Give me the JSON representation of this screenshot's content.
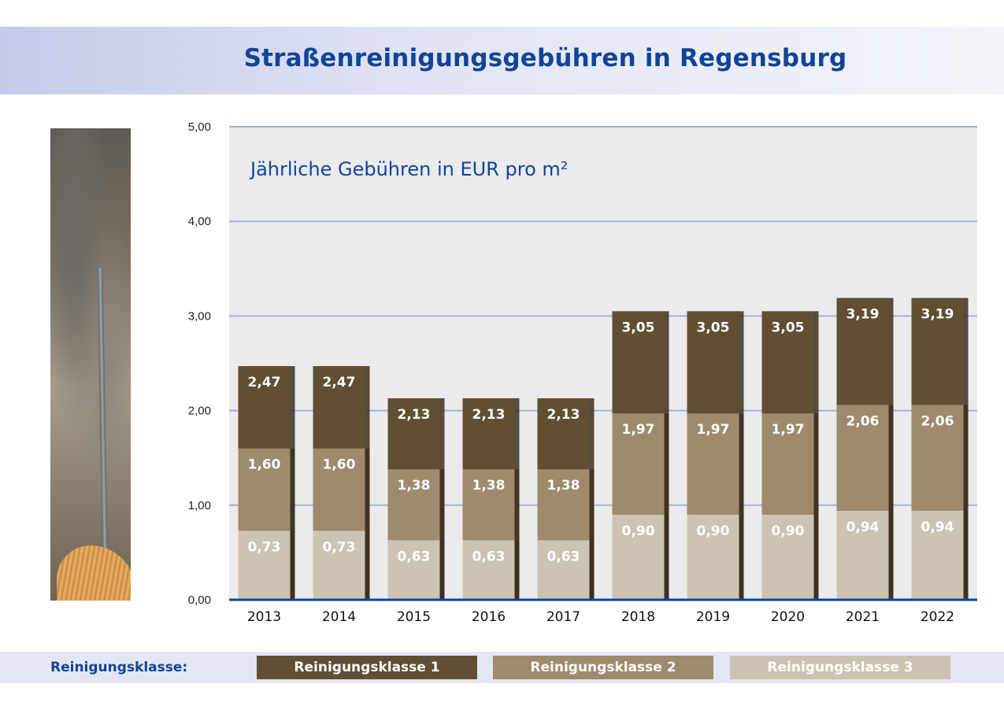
{
  "header": {
    "title": "Straßenreinigungsgebühren in Regensburg"
  },
  "legend": {
    "label": "Reinigungsklasse:",
    "items": [
      {
        "name": "Reinigungsklasse 1",
        "color": "#604f33"
      },
      {
        "name": "Reinigungsklasse 2",
        "color": "#9f8a6d"
      },
      {
        "name": "Reinigungsklasse 3",
        "color": "#cdc3b3"
      }
    ]
  },
  "chart_data": {
    "type": "bar",
    "subtitle": "Jährliche Gebühren in EUR pro m²",
    "categories": [
      "2013",
      "2014",
      "2015",
      "2016",
      "2017",
      "2018",
      "2019",
      "2020",
      "2021",
      "2022"
    ],
    "series": [
      {
        "name": "Reinigungsklasse 1",
        "values": [
          2.47,
          2.47,
          2.13,
          2.13,
          2.13,
          3.05,
          3.05,
          3.05,
          3.19,
          3.19
        ],
        "labels": [
          "2,47",
          "2,47",
          "2,13",
          "2,13",
          "2,13",
          "3,05",
          "3,05",
          "3,05",
          "3,19",
          "3,19"
        ]
      },
      {
        "name": "Reinigungsklasse 2",
        "values": [
          1.6,
          1.6,
          1.38,
          1.38,
          1.38,
          1.97,
          1.97,
          1.97,
          2.06,
          2.06
        ],
        "labels": [
          "1,60",
          "1,60",
          "1,38",
          "1,38",
          "1,38",
          "1,97",
          "1,97",
          "1,97",
          "2,06",
          "2,06"
        ]
      },
      {
        "name": "Reinigungsklasse 3",
        "values": [
          0.73,
          0.73,
          0.63,
          0.63,
          0.63,
          0.9,
          0.9,
          0.9,
          0.94,
          0.94
        ],
        "labels": [
          "0,73",
          "0,73",
          "0,63",
          "0,63",
          "0,63",
          "0,90",
          "0,90",
          "0,90",
          "0,94",
          "0,94"
        ]
      }
    ],
    "ylim": [
      0,
      5
    ],
    "yticks": [
      "0,00",
      "1,00",
      "2,00",
      "3,00",
      "4,00",
      "5,00"
    ],
    "grid": true
  }
}
